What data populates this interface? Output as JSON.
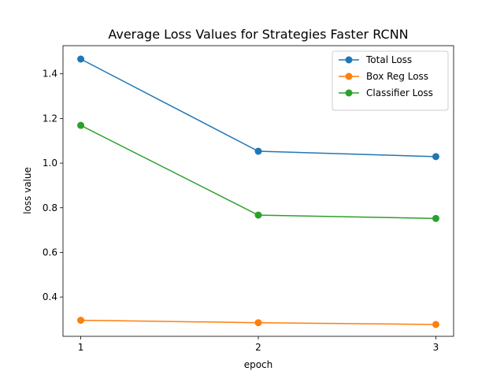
{
  "chart_data": {
    "type": "line",
    "title": "Average Loss Values for Strategies Faster RCNN",
    "xlabel": "epoch",
    "ylabel": "loss value",
    "x": [
      1,
      2,
      3
    ],
    "xticks": [
      "1",
      "2",
      "3"
    ],
    "yticks": [
      "0.4",
      "0.6",
      "0.8",
      "1.0",
      "1.2",
      "1.4"
    ],
    "xlim": [
      0.9,
      3.1
    ],
    "ylim": [
      0.224,
      1.526
    ],
    "grid": false,
    "legend_position": "top-right",
    "series": [
      {
        "name": "Total Loss",
        "color": "#1f77b4",
        "values": [
          1.466,
          1.053,
          1.029
        ]
      },
      {
        "name": "Box Reg Loss",
        "color": "#ff7f0e",
        "values": [
          0.296,
          0.285,
          0.277
        ]
      },
      {
        "name": "Classifier Loss",
        "color": "#2ca02c",
        "values": [
          1.169,
          0.767,
          0.752
        ]
      }
    ]
  }
}
